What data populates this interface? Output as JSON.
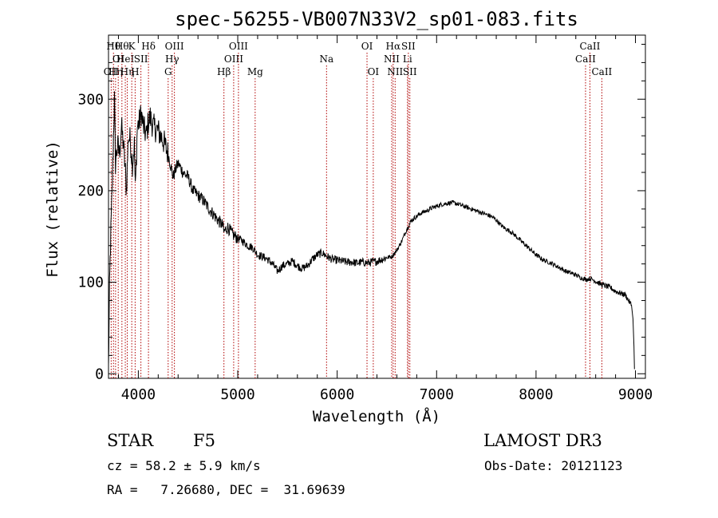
{
  "chart_data": {
    "type": "line",
    "title": "spec-56255-VB007N33V2_sp01-083.fits",
    "xlabel": "Wavelength (Å)",
    "ylabel": "Flux (relative)",
    "xlim": [
      3700,
      9100
    ],
    "ylim": [
      -5,
      370
    ],
    "xticks": [
      4000,
      5000,
      6000,
      7000,
      8000,
      9000
    ],
    "yticks": [
      0,
      100,
      200,
      300
    ],
    "grid": false,
    "series": [
      {
        "name": "spectrum",
        "points": [
          [
            3700,
            5
          ],
          [
            3710,
            90
          ],
          [
            3720,
            140
          ],
          [
            3735,
            195
          ],
          [
            3750,
            260
          ],
          [
            3760,
            300
          ],
          [
            3770,
            230
          ],
          [
            3790,
            250
          ],
          [
            3810,
            240
          ],
          [
            3830,
            270
          ],
          [
            3850,
            250
          ],
          [
            3870,
            220
          ],
          [
            3880,
            200
          ],
          [
            3900,
            260
          ],
          [
            3920,
            255
          ],
          [
            3940,
            230
          ],
          [
            3960,
            250
          ],
          [
            3970,
            200
          ],
          [
            3990,
            270
          ],
          [
            4010,
            275
          ],
          [
            4030,
            285
          ],
          [
            4050,
            270
          ],
          [
            4080,
            260
          ],
          [
            4100,
            275
          ],
          [
            4120,
            280
          ],
          [
            4150,
            270
          ],
          [
            4200,
            265
          ],
          [
            4250,
            255
          ],
          [
            4300,
            240
          ],
          [
            4330,
            225
          ],
          [
            4350,
            215
          ],
          [
            4380,
            225
          ],
          [
            4400,
            230
          ],
          [
            4450,
            220
          ],
          [
            4500,
            215
          ],
          [
            4550,
            200
          ],
          [
            4600,
            195
          ],
          [
            4650,
            190
          ],
          [
            4700,
            182
          ],
          [
            4750,
            175
          ],
          [
            4800,
            168
          ],
          [
            4850,
            162
          ],
          [
            4860,
            155
          ],
          [
            4900,
            160
          ],
          [
            4950,
            152
          ],
          [
            5000,
            148
          ],
          [
            5050,
            145
          ],
          [
            5100,
            140
          ],
          [
            5150,
            138
          ],
          [
            5200,
            130
          ],
          [
            5250,
            128
          ],
          [
            5300,
            125
          ],
          [
            5350,
            120
          ],
          [
            5400,
            112
          ],
          [
            5450,
            118
          ],
          [
            5500,
            120
          ],
          [
            5550,
            123
          ],
          [
            5600,
            118
          ],
          [
            5650,
            115
          ],
          [
            5700,
            118
          ],
          [
            5750,
            125
          ],
          [
            5800,
            130
          ],
          [
            5850,
            132
          ],
          [
            5900,
            128
          ],
          [
            5950,
            125
          ],
          [
            6000,
            124
          ],
          [
            6050,
            123
          ],
          [
            6100,
            122
          ],
          [
            6150,
            122
          ],
          [
            6200,
            121
          ],
          [
            6250,
            122
          ],
          [
            6300,
            121
          ],
          [
            6350,
            122
          ],
          [
            6400,
            123
          ],
          [
            6450,
            125
          ],
          [
            6500,
            127
          ],
          [
            6550,
            128
          ],
          [
            6600,
            135
          ],
          [
            6650,
            145
          ],
          [
            6700,
            158
          ],
          [
            6750,
            168
          ],
          [
            6800,
            172
          ],
          [
            6850,
            176
          ],
          [
            6900,
            178
          ],
          [
            6950,
            181
          ],
          [
            7000,
            183
          ],
          [
            7050,
            185
          ],
          [
            7100,
            186
          ],
          [
            7150,
            187
          ],
          [
            7200,
            186
          ],
          [
            7250,
            184
          ],
          [
            7300,
            182
          ],
          [
            7350,
            180
          ],
          [
            7400,
            178
          ],
          [
            7450,
            176
          ],
          [
            7500,
            174
          ],
          [
            7550,
            172
          ],
          [
            7600,
            168
          ],
          [
            7650,
            162
          ],
          [
            7700,
            158
          ],
          [
            7750,
            155
          ],
          [
            7800,
            150
          ],
          [
            7850,
            145
          ],
          [
            7900,
            140
          ],
          [
            7950,
            135
          ],
          [
            8000,
            130
          ],
          [
            8050,
            126
          ],
          [
            8100,
            123
          ],
          [
            8150,
            121
          ],
          [
            8200,
            118
          ],
          [
            8250,
            115
          ],
          [
            8300,
            112
          ],
          [
            8350,
            110
          ],
          [
            8400,
            108
          ],
          [
            8450,
            105
          ],
          [
            8500,
            103
          ],
          [
            8550,
            104
          ],
          [
            8600,
            101
          ],
          [
            8650,
            98
          ],
          [
            8700,
            96
          ],
          [
            8750,
            94
          ],
          [
            8800,
            90
          ],
          [
            8850,
            88
          ],
          [
            8900,
            86
          ],
          [
            8930,
            80
          ],
          [
            8960,
            75
          ],
          [
            8975,
            60
          ],
          [
            8985,
            30
          ],
          [
            8990,
            5
          ]
        ]
      }
    ],
    "lines": [
      {
        "wave": 3727,
        "label": "OII",
        "tier": 2
      },
      {
        "wave": 3750,
        "label": "Hθ",
        "tier": 0
      },
      {
        "wave": 3771,
        "label": "Hη",
        "tier": 2
      },
      {
        "wave": 3798,
        "label": "OI",
        "tier": 1
      },
      {
        "wave": 3835,
        "label": "Hθ",
        "tier": 0
      },
      {
        "wave": 3869,
        "label": "HeI",
        "tier": 1
      },
      {
        "wave": 3889,
        "label": "Hη",
        "tier": 2
      },
      {
        "wave": 3934,
        "label": "K",
        "tier": 0
      },
      {
        "wave": 3968,
        "label": "H",
        "tier": 2
      },
      {
        "wave": 4026,
        "label": "SII",
        "tier": 1
      },
      {
        "wave": 4102,
        "label": "Hδ",
        "tier": 0
      },
      {
        "wave": 4300,
        "label": "G",
        "tier": 2
      },
      {
        "wave": 4340,
        "label": "Hγ",
        "tier": 1
      },
      {
        "wave": 4363,
        "label": "OIII",
        "tier": 0
      },
      {
        "wave": 4861,
        "label": "Hβ",
        "tier": 2
      },
      {
        "wave": 4959,
        "label": "OIII",
        "tier": 1
      },
      {
        "wave": 5007,
        "label": "OIII",
        "tier": 0
      },
      {
        "wave": 5175,
        "label": "Mg",
        "tier": 2
      },
      {
        "wave": 5893,
        "label": "Na",
        "tier": 1
      },
      {
        "wave": 6300,
        "label": "OI",
        "tier": 0
      },
      {
        "wave": 6363,
        "label": "OI",
        "tier": 2
      },
      {
        "wave": 6548,
        "label": "NII",
        "tier": 1
      },
      {
        "wave": 6563,
        "label": "Hα",
        "tier": 0
      },
      {
        "wave": 6583,
        "label": "NII",
        "tier": 2
      },
      {
        "wave": 6707,
        "label": "Li",
        "tier": 1
      },
      {
        "wave": 6716,
        "label": "SII",
        "tier": 0
      },
      {
        "wave": 6731,
        "label": "SII",
        "tier": 2
      },
      {
        "wave": 8498,
        "label": "CaII",
        "tier": 1
      },
      {
        "wave": 8542,
        "label": "CaII",
        "tier": 0
      },
      {
        "wave": 8662,
        "label": "CaII",
        "tier": 2
      }
    ]
  },
  "info": {
    "class_label": "STAR",
    "subclass": "F5",
    "survey": "LAMOST DR3",
    "cz": "cz = 58.2 ± 5.9 km/s",
    "obs_date": "Obs-Date: 20121123",
    "radec": "RA =   7.26680, DEC =  31.69639"
  }
}
